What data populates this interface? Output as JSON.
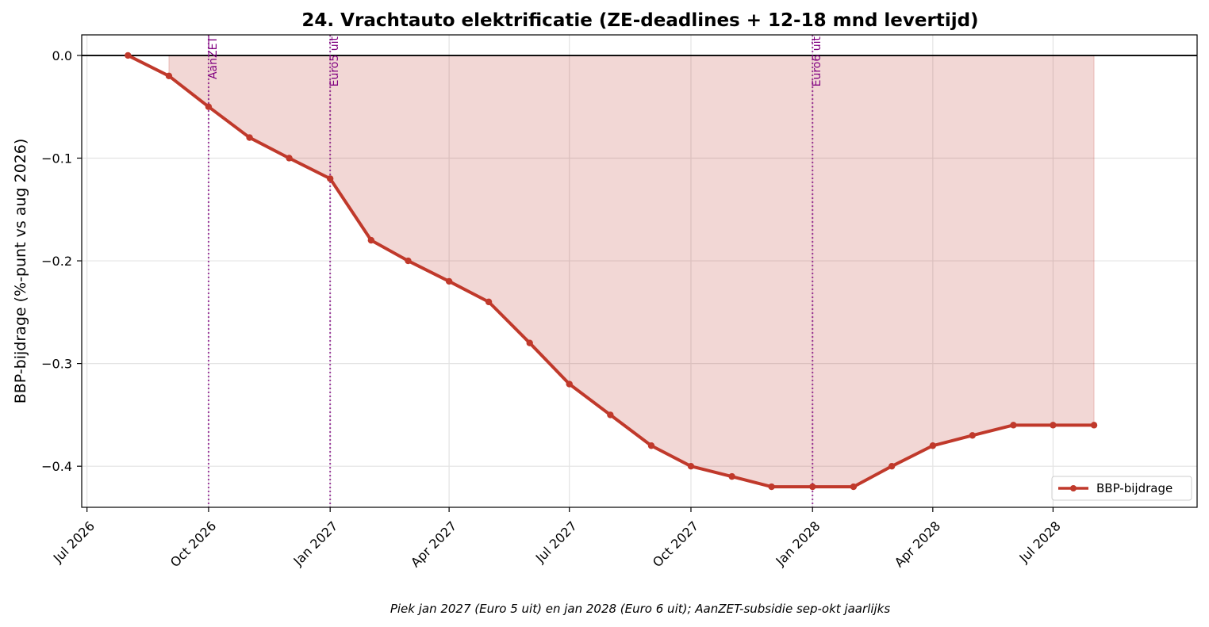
{
  "chart_data": {
    "type": "line",
    "title": "24. Vrachtauto elektrificatie (ZE-deadlines + 12-18 mnd levertijd)",
    "ylabel": "BBP-bijdrage (%-punt vs aug 2026)",
    "xlabel": "",
    "caption": "Piek jan 2027 (Euro 5 uit) en jan 2028 (Euro 6 uit); AanZET-subsidie sep-okt jaarlijks",
    "ylim": [
      -0.44,
      0.02
    ],
    "xlim": [
      "2026-06-27",
      "2028-10-18"
    ],
    "yticks": [
      0.0,
      -0.1,
      -0.2,
      -0.3,
      -0.4
    ],
    "ytick_labels": [
      "0.0",
      "−0.1",
      "−0.2",
      "−0.3",
      "−0.4"
    ],
    "xticks": [
      "2026-07-01",
      "2026-10-01",
      "2027-01-01",
      "2027-04-01",
      "2027-07-01",
      "2027-10-01",
      "2028-01-01",
      "2028-04-01",
      "2028-07-01"
    ],
    "xtick_labels": [
      "Jul 2026",
      "Oct 2026",
      "Jan 2027",
      "Apr 2027",
      "Jul 2027",
      "Oct 2027",
      "Jan 2028",
      "Apr 2028",
      "Jul 2028"
    ],
    "grid": true,
    "legend_position": "lower-right",
    "series": [
      {
        "name": "BBP-bijdrage",
        "color": "#c0392b",
        "fill_color": "#c0392b",
        "x": [
          "2026-08-01",
          "2026-09-01",
          "2026-10-01",
          "2026-11-01",
          "2026-12-01",
          "2027-01-01",
          "2027-02-01",
          "2027-03-01",
          "2027-04-01",
          "2027-05-01",
          "2027-06-01",
          "2027-07-01",
          "2027-08-01",
          "2027-09-01",
          "2027-10-01",
          "2027-11-01",
          "2027-12-01",
          "2028-01-01",
          "2028-02-01",
          "2028-03-01",
          "2028-04-01",
          "2028-05-01",
          "2028-06-01",
          "2028-07-01",
          "2028-08-01"
        ],
        "values": [
          0.0,
          -0.02,
          -0.05,
          -0.08,
          -0.1,
          -0.12,
          -0.18,
          -0.2,
          -0.22,
          -0.24,
          -0.28,
          -0.32,
          -0.35,
          -0.38,
          -0.4,
          -0.41,
          -0.42,
          -0.42,
          -0.42,
          -0.4,
          -0.38,
          -0.37,
          -0.36,
          -0.36,
          -0.36
        ]
      }
    ],
    "event_lines": [
      {
        "label": "AanZET",
        "date": "2026-10-01"
      },
      {
        "label": "Euro5 uit",
        "date": "2027-01-01"
      },
      {
        "label": "Euro6 uit",
        "date": "2028-01-01"
      }
    ],
    "event_color": "#800080",
    "zero_line": true
  }
}
